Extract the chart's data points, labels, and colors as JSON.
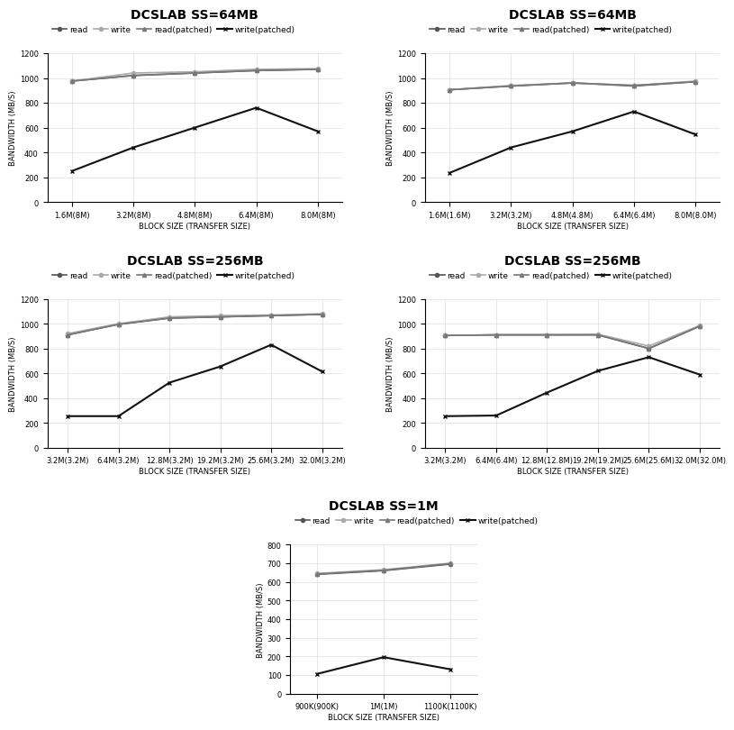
{
  "plots": [
    {
      "title": "DCSLAB SS=64MB",
      "xlabel": "BLOCK SIZE (TRANSFER SIZE)",
      "ylabel": "BANDWIDTH (MB/S)",
      "xtick_labels": [
        "1.6M(8M)",
        "3.2M(8M)",
        "4.8M(8M)",
        "6.4M(8M)",
        "8.0M(8M)"
      ],
      "ylim": [
        0,
        1200
      ],
      "yticks": [
        0,
        200,
        400,
        600,
        800,
        1000,
        1200
      ],
      "series": {
        "read": [
          975,
          1020,
          1040,
          1060,
          1070
        ],
        "write": [
          975,
          1040,
          1050,
          1070,
          1075
        ],
        "read(patched)": [
          975,
          1020,
          1040,
          1060,
          1070
        ],
        "write(patched)": [
          250,
          440,
          600,
          760,
          570
        ]
      }
    },
    {
      "title": "DCSLAB SS=64MB",
      "xlabel": "BLOCK SIZE (TRANSFER SIZE)",
      "ylabel": "BANDWIDTH (MB/S)",
      "xtick_labels": [
        "1.6M(1.6M)",
        "3.2M(3.2M)",
        "4.8M(4.8M)",
        "6.4M(6.4M)",
        "8.0M(8.0M)"
      ],
      "ylim": [
        0,
        1200
      ],
      "yticks": [
        0,
        200,
        400,
        600,
        800,
        1000,
        1200
      ],
      "series": {
        "read": [
          905,
          935,
          960,
          935,
          970
        ],
        "write": [
          905,
          940,
          960,
          940,
          975
        ],
        "read(patched)": [
          905,
          935,
          960,
          940,
          970
        ],
        "write(patched)": [
          235,
          440,
          570,
          730,
          545
        ]
      }
    },
    {
      "title": "DCSLAB SS=256MB",
      "xlabel": "BLOCK SIZE (TRANSFER SIZE)",
      "ylabel": "BANDWIDTH (MB/S)",
      "xtick_labels": [
        "3.2M(3.2M)",
        "6.4M(3.2M)",
        "12.8M(3.2M)",
        "19.2M(3.2M)",
        "25.6M(3.2M)",
        "32.0M(3.2M)"
      ],
      "ylim": [
        0,
        1200
      ],
      "yticks": [
        0,
        200,
        400,
        600,
        800,
        1000,
        1200
      ],
      "series": {
        "read": [
          910,
          995,
          1045,
          1055,
          1065,
          1075
        ],
        "write": [
          920,
          1000,
          1055,
          1065,
          1070,
          1080
        ],
        "read(patched)": [
          910,
          995,
          1045,
          1055,
          1065,
          1075
        ],
        "write(patched)": [
          255,
          255,
          525,
          655,
          830,
          615
        ]
      }
    },
    {
      "title": "DCSLAB SS=256MB",
      "xlabel": "BLOCK SIZE (TRANSFER SIZE)",
      "ylabel": "BANDWIDTH (MB/S)",
      "xtick_labels": [
        "3.2M(3.2M)",
        "6.4M(6.4M)",
        "12.8M(12.8M)",
        "19.2M(19.2M)",
        "25.6M(25.6M)",
        "32.0M(32.0M)"
      ],
      "ylim": [
        0,
        1200
      ],
      "yticks": [
        0,
        200,
        400,
        600,
        800,
        1000,
        1200
      ],
      "series": {
        "read": [
          905,
          910,
          910,
          910,
          800,
          980
        ],
        "write": [
          905,
          910,
          910,
          915,
          820,
          985
        ],
        "read(patched)": [
          905,
          910,
          910,
          910,
          800,
          980
        ],
        "write(patched)": [
          255,
          260,
          445,
          620,
          730,
          590
        ]
      }
    },
    {
      "title": "DCSLAB SS=1M",
      "xlabel": "BLOCK SIZE (TRANSFER SIZE)",
      "ylabel": "BANDWIDTH (MB/S)",
      "xtick_labels": [
        "900K(900K)",
        "1M(1M)",
        "1100K(1100K)"
      ],
      "ylim": [
        0,
        800
      ],
      "yticks": [
        0,
        100,
        200,
        300,
        400,
        500,
        600,
        700,
        800
      ],
      "series": {
        "read": [
          640,
          660,
          695
        ],
        "write": [
          645,
          665,
          700
        ],
        "read(patched)": [
          642,
          662,
          698
        ],
        "write(patched)": [
          105,
          195,
          130
        ]
      }
    }
  ],
  "line_styles": {
    "read": {
      "color": "#555555",
      "marker": "o",
      "linestyle": "-",
      "linewidth": 1.2
    },
    "write": {
      "color": "#aaaaaa",
      "marker": "o",
      "linestyle": "-",
      "linewidth": 1.2
    },
    "read(patched)": {
      "color": "#777777",
      "marker": "^",
      "linestyle": "-",
      "linewidth": 1.2
    },
    "write(patched)": {
      "color": "#111111",
      "marker": "x",
      "linestyle": "-",
      "linewidth": 1.5
    }
  },
  "legend_labels": [
    "read",
    "write",
    "read(patched)",
    "write(patched)"
  ],
  "background_color": "#ffffff",
  "grid_color": "#dddddd",
  "title_fontsize": 10,
  "axis_label_fontsize": 6,
  "tick_fontsize": 6,
  "legend_fontsize": 6.5
}
